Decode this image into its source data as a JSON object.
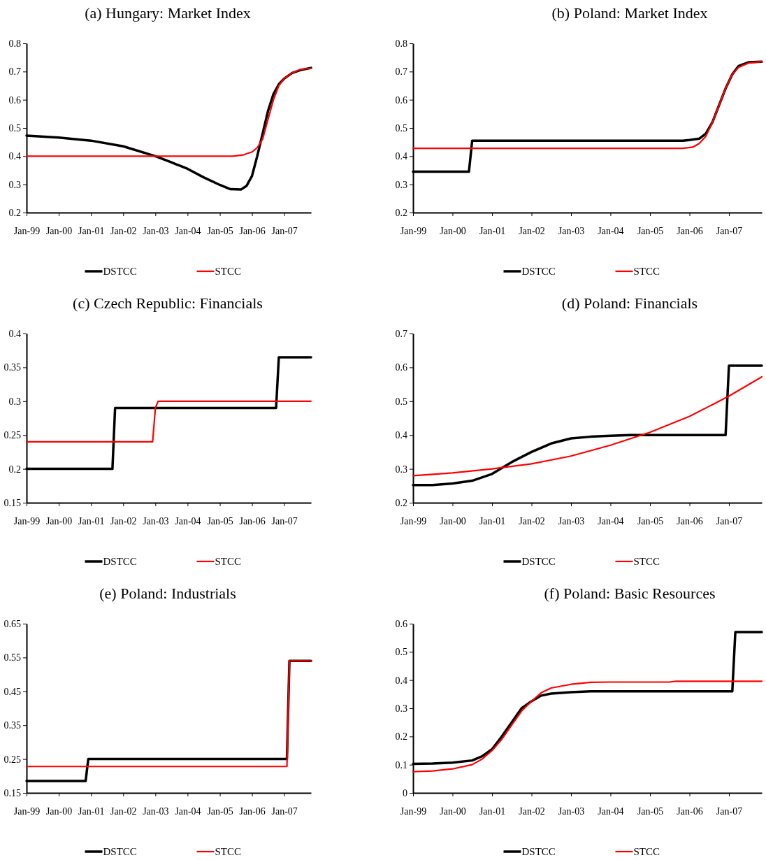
{
  "chart_data": [
    {
      "type": "line",
      "title": "(a) Hungary: Market Index",
      "xlim": [
        "1999-01",
        "2007-11"
      ],
      "xticks": [
        {
          "value": "1999-01",
          "label": "Jan-99"
        },
        {
          "value": "2000-01",
          "label": "Jan-00"
        },
        {
          "value": "2001-01",
          "label": "Jan-01"
        },
        {
          "value": "2002-01",
          "label": "Jan-02"
        },
        {
          "value": "2003-01",
          "label": "Jan-03"
        },
        {
          "value": "2004-01",
          "label": "Jan-04"
        },
        {
          "value": "2005-01",
          "label": "Jan-05"
        },
        {
          "value": "2006-01",
          "label": "Jan-06"
        },
        {
          "value": "2007-01",
          "label": "Jan-07"
        }
      ],
      "ylim": [
        0.2,
        0.8
      ],
      "yticks": [
        0.2,
        0.3,
        0.4,
        0.5,
        0.6,
        0.7,
        0.8
      ],
      "legend": "bottom",
      "grid": false,
      "series": [
        {
          "name": "DSTCC",
          "color": "#000000",
          "x": [
            "1999-01",
            "2000-01",
            "2001-01",
            "2002-01",
            "2003-01",
            "2003-07",
            "2004-01",
            "2004-07",
            "2005-01",
            "2005-05",
            "2005-09",
            "2005-11",
            "2006-01",
            "2006-03",
            "2006-05",
            "2006-07",
            "2006-09",
            "2006-11",
            "2007-01",
            "2007-04",
            "2007-07",
            "2007-11"
          ],
          "values": [
            0.473,
            0.466,
            0.455,
            0.435,
            0.4,
            0.378,
            0.355,
            0.325,
            0.298,
            0.283,
            0.282,
            0.295,
            0.33,
            0.4,
            0.48,
            0.56,
            0.62,
            0.655,
            0.675,
            0.695,
            0.705,
            0.713
          ]
        },
        {
          "name": "STCC",
          "color": "#ff0000",
          "x": [
            "1999-01",
            "2005-06",
            "2005-10",
            "2006-01",
            "2006-03",
            "2006-05",
            "2006-07",
            "2006-09",
            "2006-11",
            "2007-01",
            "2007-04",
            "2007-07",
            "2007-11"
          ],
          "values": [
            0.4,
            0.4,
            0.405,
            0.415,
            0.43,
            0.46,
            0.53,
            0.6,
            0.65,
            0.675,
            0.695,
            0.707,
            0.712
          ]
        }
      ]
    },
    {
      "type": "line",
      "title": "(b) Poland: Market Index",
      "xlim": [
        "1999-01",
        "2007-11"
      ],
      "xticks": [
        {
          "value": "1999-01",
          "label": "Jan-99"
        },
        {
          "value": "2000-01",
          "label": "Jan-00"
        },
        {
          "value": "2001-01",
          "label": "Jan-01"
        },
        {
          "value": "2002-01",
          "label": "Jan-02"
        },
        {
          "value": "2003-01",
          "label": "Jan-03"
        },
        {
          "value": "2004-01",
          "label": "Jan-04"
        },
        {
          "value": "2005-01",
          "label": "Jan-05"
        },
        {
          "value": "2006-01",
          "label": "Jan-06"
        },
        {
          "value": "2007-01",
          "label": "Jan-07"
        }
      ],
      "ylim": [
        0.2,
        0.8
      ],
      "yticks": [
        0.2,
        0.3,
        0.4,
        0.5,
        0.6,
        0.7,
        0.8
      ],
      "legend": "bottom",
      "grid": false,
      "series": [
        {
          "name": "DSTCC",
          "color": "#000000",
          "x": [
            "1999-01",
            "2000-06",
            "2000-07",
            "2005-11",
            "2006-01",
            "2006-04",
            "2006-06",
            "2006-08",
            "2006-10",
            "2006-12",
            "2007-02",
            "2007-04",
            "2007-07",
            "2007-11"
          ],
          "values": [
            0.345,
            0.345,
            0.455,
            0.455,
            0.457,
            0.462,
            0.48,
            0.52,
            0.58,
            0.64,
            0.69,
            0.72,
            0.733,
            0.735
          ]
        },
        {
          "name": "STCC",
          "color": "#ff0000",
          "x": [
            "1999-01",
            "2005-11",
            "2006-02",
            "2006-04",
            "2006-06",
            "2006-08",
            "2006-10",
            "2006-12",
            "2007-02",
            "2007-04",
            "2007-07",
            "2007-11"
          ],
          "values": [
            0.428,
            0.428,
            0.432,
            0.445,
            0.47,
            0.52,
            0.58,
            0.64,
            0.69,
            0.715,
            0.73,
            0.735
          ]
        }
      ]
    },
    {
      "type": "line",
      "title": "(c) Czech Republic: Financials",
      "xlim": [
        "1999-01",
        "2007-11"
      ],
      "xticks": [
        {
          "value": "1999-01",
          "label": "Jan-99"
        },
        {
          "value": "2000-01",
          "label": "Jan-00"
        },
        {
          "value": "2001-01",
          "label": "Jan-01"
        },
        {
          "value": "2002-01",
          "label": "Jan-02"
        },
        {
          "value": "2003-01",
          "label": "Jan-03"
        },
        {
          "value": "2004-01",
          "label": "Jan-04"
        },
        {
          "value": "2005-01",
          "label": "Jan-05"
        },
        {
          "value": "2006-01",
          "label": "Jan-06"
        },
        {
          "value": "2007-01",
          "label": "Jan-07"
        }
      ],
      "ylim": [
        0.15,
        0.4
      ],
      "yticks": [
        0.15,
        0.2,
        0.25,
        0.3,
        0.35,
        0.4
      ],
      "legend": "bottom",
      "grid": false,
      "series": [
        {
          "name": "DSTCC",
          "color": "#000000",
          "x": [
            "1999-01",
            "2001-09",
            "2001-10",
            "2006-10",
            "2006-11",
            "2007-11"
          ],
          "values": [
            0.2,
            0.2,
            0.29,
            0.29,
            0.365,
            0.365
          ]
        },
        {
          "name": "STCC",
          "color": "#ff0000",
          "x": [
            "1999-01",
            "2002-12",
            "2003-01",
            "2003-02",
            "2007-11"
          ],
          "values": [
            0.24,
            0.24,
            0.29,
            0.3,
            0.3
          ]
        }
      ]
    },
    {
      "type": "line",
      "title": "(d) Poland: Financials",
      "xlim": [
        "1999-01",
        "2007-11"
      ],
      "xticks": [
        {
          "value": "1999-01",
          "label": "Jan-99"
        },
        {
          "value": "2000-01",
          "label": "Jan-00"
        },
        {
          "value": "2001-01",
          "label": "Jan-01"
        },
        {
          "value": "2002-01",
          "label": "Jan-02"
        },
        {
          "value": "2003-01",
          "label": "Jan-03"
        },
        {
          "value": "2004-01",
          "label": "Jan-04"
        },
        {
          "value": "2005-01",
          "label": "Jan-05"
        },
        {
          "value": "2006-01",
          "label": "Jan-06"
        },
        {
          "value": "2007-01",
          "label": "Jan-07"
        }
      ],
      "ylim": [
        0.2,
        0.7
      ],
      "yticks": [
        0.2,
        0.3,
        0.4,
        0.5,
        0.6,
        0.7
      ],
      "legend": "bottom",
      "grid": false,
      "series": [
        {
          "name": "DSTCC",
          "color": "#000000",
          "x": [
            "1999-01",
            "1999-07",
            "2000-01",
            "2000-07",
            "2001-01",
            "2001-07",
            "2002-01",
            "2002-07",
            "2003-01",
            "2003-07",
            "2004-01",
            "2004-07",
            "2006-12",
            "2007-01",
            "2007-11"
          ],
          "values": [
            0.252,
            0.252,
            0.257,
            0.265,
            0.285,
            0.32,
            0.35,
            0.375,
            0.39,
            0.395,
            0.398,
            0.4,
            0.4,
            0.605,
            0.605
          ]
        },
        {
          "name": "STCC",
          "color": "#ff0000",
          "x": [
            "1999-01",
            "2000-01",
            "2001-01",
            "2002-01",
            "2003-01",
            "2004-01",
            "2005-01",
            "2006-01",
            "2007-01",
            "2007-11"
          ],
          "values": [
            0.28,
            0.288,
            0.3,
            0.315,
            0.338,
            0.37,
            0.408,
            0.455,
            0.515,
            0.572
          ]
        }
      ]
    },
    {
      "type": "line",
      "title": "(e) Poland: Industrials",
      "xlim": [
        "1999-01",
        "2007-11"
      ],
      "xticks": [
        {
          "value": "1999-01",
          "label": "Jan-99"
        },
        {
          "value": "2000-01",
          "label": "Jan-00"
        },
        {
          "value": "2001-01",
          "label": "Jan-01"
        },
        {
          "value": "2002-01",
          "label": "Jan-02"
        },
        {
          "value": "2003-01",
          "label": "Jan-03"
        },
        {
          "value": "2004-01",
          "label": "Jan-04"
        },
        {
          "value": "2005-01",
          "label": "Jan-05"
        },
        {
          "value": "2006-01",
          "label": "Jan-06"
        },
        {
          "value": "2007-01",
          "label": "Jan-07"
        }
      ],
      "ylim": [
        0.15,
        0.65
      ],
      "yticks": [
        0.15,
        0.25,
        0.35,
        0.45,
        0.55,
        0.65
      ],
      "legend": "bottom",
      "grid": false,
      "series": [
        {
          "name": "DSTCC",
          "color": "#000000",
          "x": [
            "1999-01",
            "2000-11",
            "2000-12",
            "2007-02",
            "2007-03",
            "2007-11"
          ],
          "values": [
            0.185,
            0.185,
            0.25,
            0.25,
            0.54,
            0.54
          ]
        },
        {
          "name": "STCC",
          "color": "#ff0000",
          "x": [
            "1999-01",
            "2007-02",
            "2007-03",
            "2007-11"
          ],
          "values": [
            0.228,
            0.228,
            0.54,
            0.54
          ]
        }
      ]
    },
    {
      "type": "line",
      "title": "(f) Poland: Basic Resources",
      "xlim": [
        "1999-01",
        "2007-11"
      ],
      "xticks": [
        {
          "value": "1999-01",
          "label": "Jan-99"
        },
        {
          "value": "2000-01",
          "label": "Jan-00"
        },
        {
          "value": "2001-01",
          "label": "Jan-01"
        },
        {
          "value": "2002-01",
          "label": "Jan-02"
        },
        {
          "value": "2003-01",
          "label": "Jan-03"
        },
        {
          "value": "2004-01",
          "label": "Jan-04"
        },
        {
          "value": "2005-01",
          "label": "Jan-05"
        },
        {
          "value": "2006-01",
          "label": "Jan-06"
        },
        {
          "value": "2007-01",
          "label": "Jan-07"
        }
      ],
      "ylim": [
        0,
        0.6
      ],
      "yticks": [
        0,
        0.1,
        0.2,
        0.3,
        0.4,
        0.5,
        0.6
      ],
      "legend": "bottom",
      "grid": false,
      "series": [
        {
          "name": "DSTCC",
          "color": "#000000",
          "x": [
            "1999-01",
            "1999-07",
            "2000-01",
            "2000-07",
            "2000-10",
            "2001-01",
            "2001-04",
            "2001-07",
            "2001-10",
            "2002-01",
            "2002-04",
            "2002-07",
            "2003-01",
            "2003-07",
            "2007-02",
            "2007-03",
            "2007-11"
          ],
          "values": [
            0.103,
            0.104,
            0.107,
            0.115,
            0.13,
            0.155,
            0.2,
            0.25,
            0.3,
            0.325,
            0.345,
            0.352,
            0.357,
            0.36,
            0.36,
            0.57,
            0.57
          ]
        },
        {
          "name": "STCC",
          "color": "#ff0000",
          "x": [
            "1999-01",
            "1999-07",
            "2000-01",
            "2000-07",
            "2000-10",
            "2001-01",
            "2001-04",
            "2001-07",
            "2001-10",
            "2002-01",
            "2002-04",
            "2002-07",
            "2003-01",
            "2003-07",
            "2004-01",
            "2005-07",
            "2005-09",
            "2007-11"
          ],
          "values": [
            0.075,
            0.078,
            0.085,
            0.1,
            0.12,
            0.15,
            0.19,
            0.24,
            0.29,
            0.325,
            0.355,
            0.372,
            0.385,
            0.392,
            0.393,
            0.393,
            0.396,
            0.396
          ]
        }
      ]
    }
  ]
}
